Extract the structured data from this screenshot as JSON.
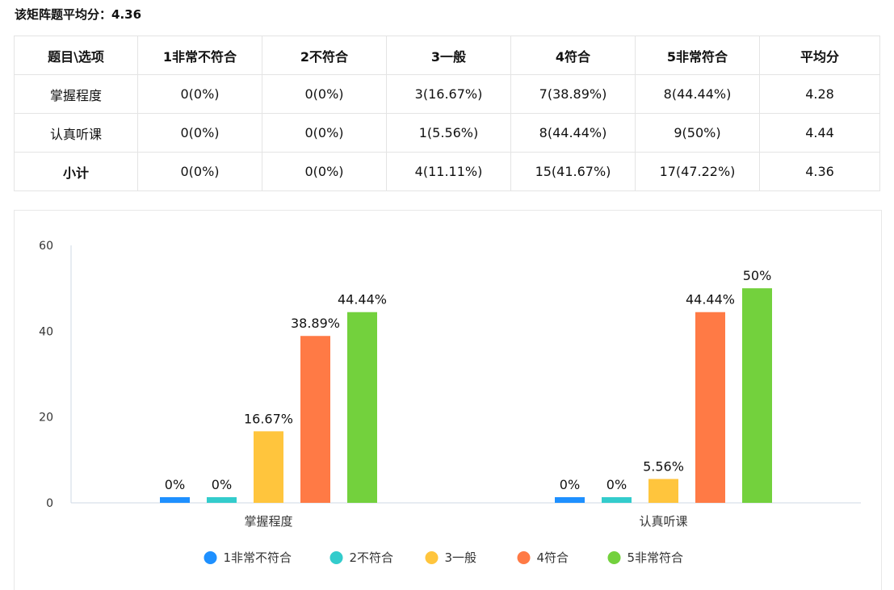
{
  "summary": "该矩阵题平均分：4.36",
  "table": {
    "headers": [
      "题目\\选项",
      "1非常不符合",
      "2不符合",
      "3一般",
      "4符合",
      "5非常符合",
      "平均分"
    ],
    "rows": [
      [
        "掌握程度",
        "0(0%)",
        "0(0%)",
        "3(16.67%)",
        "7(38.89%)",
        "8(44.44%)",
        "4.28"
      ],
      [
        "认真听课",
        "0(0%)",
        "0(0%)",
        "1(5.56%)",
        "8(44.44%)",
        "9(50%)",
        "4.44"
      ],
      [
        "小计",
        "0(0%)",
        "0(0%)",
        "4(11.11%)",
        "15(41.67%)",
        "17(47.22%)",
        "4.36"
      ]
    ]
  },
  "chart_data": {
    "type": "bar",
    "categories": [
      "掌握程度",
      "认真听课"
    ],
    "ylim": [
      0,
      60
    ],
    "yticks": [
      0,
      20,
      40,
      60
    ],
    "series": [
      {
        "name": "1非常不符合",
        "color": "#1e90ff",
        "values": [
          0,
          0
        ],
        "labels": [
          "0%",
          "0%"
        ]
      },
      {
        "name": "2不符合",
        "color": "#33cccc",
        "values": [
          0,
          0
        ],
        "labels": [
          "0%",
          "0%"
        ]
      },
      {
        "name": "3一般",
        "color": "#ffc53d",
        "values": [
          16.67,
          5.56
        ],
        "labels": [
          "16.67%",
          "5.56%"
        ]
      },
      {
        "name": "4符合",
        "color": "#ff7a45",
        "values": [
          38.89,
          44.44
        ],
        "labels": [
          "38.89%",
          "44.44%"
        ]
      },
      {
        "name": "5非常符合",
        "color": "#73d13d",
        "values": [
          44.44,
          50
        ],
        "labels": [
          "44.44%",
          "50%"
        ]
      }
    ],
    "legend": "bottom",
    "grid": false
  }
}
